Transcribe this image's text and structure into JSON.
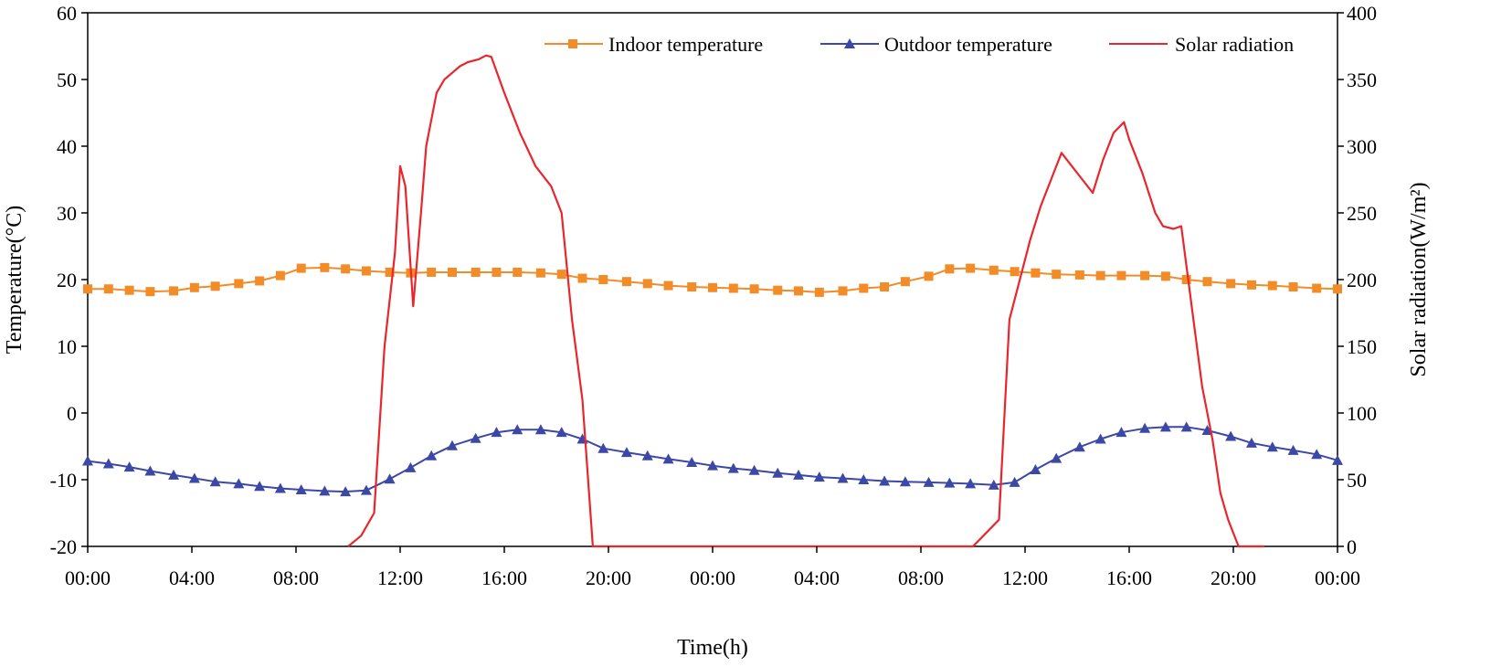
{
  "chart_data": {
    "type": "line",
    "xlabel": "Time(h)",
    "ylabel_left": "Temperature(°C)",
    "ylabel_right": "Solar radiation(W/m²)",
    "x_range_hours": [
      0,
      48
    ],
    "x_ticks": [
      {
        "hour": 0,
        "label": "00:00"
      },
      {
        "hour": 4,
        "label": "04:00"
      },
      {
        "hour": 8,
        "label": "08:00"
      },
      {
        "hour": 12,
        "label": "12:00"
      },
      {
        "hour": 16,
        "label": "16:00"
      },
      {
        "hour": 20,
        "label": "20:00"
      },
      {
        "hour": 24,
        "label": "00:00"
      },
      {
        "hour": 28,
        "label": "04:00"
      },
      {
        "hour": 32,
        "label": "08:00"
      },
      {
        "hour": 36,
        "label": "12:00"
      },
      {
        "hour": 40,
        "label": "16:00"
      },
      {
        "hour": 44,
        "label": "20:00"
      },
      {
        "hour": 48,
        "label": "00:00"
      }
    ],
    "ylim_left": [
      -20,
      60
    ],
    "yticks_left": [
      -20,
      -10,
      0,
      10,
      20,
      30,
      40,
      50,
      60
    ],
    "ytick_labels_left": [
      "-20",
      "-10",
      "0",
      "10",
      "20",
      "30",
      "40",
      "50",
      "60"
    ],
    "ylim_right": [
      0,
      400
    ],
    "yticks_right": [
      0,
      50,
      100,
      150,
      200,
      250,
      300,
      350,
      400
    ],
    "ytick_labels_right": [
      "0",
      "50",
      "100",
      "150",
      "200",
      "250",
      "300",
      "350",
      "400"
    ],
    "legend_position": "top-right",
    "series": [
      {
        "name": "Indoor temperature",
        "axis": "left",
        "color": "#F28C28",
        "marker": "square",
        "x": [
          0,
          0.8,
          1.6,
          2.4,
          3.3,
          4.1,
          4.9,
          5.8,
          6.6,
          7.4,
          8.2,
          9.1,
          9.9,
          10.7,
          11.6,
          12.4,
          13.2,
          14.0,
          14.9,
          15.7,
          16.5,
          17.4,
          18.2,
          19.0,
          19.8,
          20.7,
          21.5,
          22.3,
          23.2,
          24.0,
          24.8,
          25.6,
          26.5,
          27.3,
          28.1,
          29.0,
          29.8,
          30.6,
          31.4,
          32.3,
          33.1,
          33.9,
          34.8,
          35.6,
          36.4,
          37.2,
          38.1,
          38.9,
          39.7,
          40.6,
          41.4,
          42.2,
          43.0,
          43.9,
          44.7,
          45.5,
          46.3,
          47.2,
          48.0
        ],
        "values": [
          18.6,
          18.6,
          18.4,
          18.2,
          18.3,
          18.8,
          19.0,
          19.4,
          19.8,
          20.6,
          21.7,
          21.8,
          21.6,
          21.3,
          21.1,
          21.0,
          21.1,
          21.1,
          21.1,
          21.1,
          21.1,
          21.0,
          20.8,
          20.2,
          20.0,
          19.7,
          19.4,
          19.1,
          18.9,
          18.8,
          18.7,
          18.6,
          18.4,
          18.3,
          18.1,
          18.3,
          18.7,
          18.9,
          19.7,
          20.5,
          21.6,
          21.7,
          21.4,
          21.2,
          21.0,
          20.8,
          20.7,
          20.6,
          20.6,
          20.6,
          20.5,
          20.0,
          19.7,
          19.4,
          19.2,
          19.1,
          18.9,
          18.7,
          18.6
        ]
      },
      {
        "name": "Outdoor temperature",
        "axis": "left",
        "color": "#3C48A6",
        "marker": "triangle",
        "x": [
          0,
          0.8,
          1.6,
          2.4,
          3.3,
          4.1,
          4.9,
          5.8,
          6.6,
          7.4,
          8.2,
          9.1,
          9.9,
          10.7,
          11.6,
          12.4,
          13.2,
          14.0,
          14.9,
          15.7,
          16.5,
          17.4,
          18.2,
          19.0,
          19.8,
          20.7,
          21.5,
          22.3,
          23.2,
          24.0,
          24.8,
          25.6,
          26.5,
          27.3,
          28.1,
          29.0,
          29.8,
          30.6,
          31.4,
          32.3,
          33.1,
          33.9,
          34.8,
          35.6,
          36.4,
          37.2,
          38.1,
          38.9,
          39.7,
          40.6,
          41.4,
          42.2,
          43.0,
          43.9,
          44.7,
          45.5,
          46.3,
          47.2,
          48.0
        ],
        "values": [
          -7.2,
          -7.6,
          -8.1,
          -8.7,
          -9.3,
          -9.8,
          -10.3,
          -10.6,
          -11.0,
          -11.3,
          -11.5,
          -11.7,
          -11.8,
          -11.6,
          -9.9,
          -8.2,
          -6.4,
          -4.9,
          -3.8,
          -2.9,
          -2.5,
          -2.5,
          -2.9,
          -3.9,
          -5.3,
          -5.9,
          -6.4,
          -6.9,
          -7.4,
          -7.9,
          -8.3,
          -8.6,
          -9.0,
          -9.3,
          -9.6,
          -9.8,
          -10.0,
          -10.2,
          -10.3,
          -10.4,
          -10.5,
          -10.6,
          -10.8,
          -10.4,
          -8.5,
          -6.8,
          -5.1,
          -3.9,
          -2.9,
          -2.3,
          -2.1,
          -2.1,
          -2.6,
          -3.5,
          -4.5,
          -5.1,
          -5.6,
          -6.2,
          -7.1
        ]
      },
      {
        "name": "Solar radiation",
        "axis": "right",
        "color": "#E8262C",
        "marker": "none",
        "x": [
          10.0,
          10.5,
          11.0,
          11.4,
          11.8,
          12.0,
          12.2,
          12.5,
          12.8,
          13.0,
          13.4,
          13.7,
          14.0,
          14.3,
          14.6,
          15.0,
          15.3,
          15.5,
          16.0,
          16.6,
          17.2,
          17.8,
          18.2,
          18.6,
          19.0,
          19.4,
          20.0,
          24.0,
          30.0,
          34.0,
          35.0,
          35.4,
          35.8,
          36.2,
          36.6,
          37.0,
          37.4,
          37.8,
          38.2,
          38.6,
          39.0,
          39.4,
          39.8,
          40.0,
          40.5,
          41.0,
          41.3,
          41.7,
          42.0,
          42.4,
          42.8,
          43.2,
          43.5,
          43.8,
          44.2,
          44.5,
          44.9,
          45.2
        ],
        "values": [
          0,
          8,
          25,
          150,
          220,
          285,
          270,
          180,
          250,
          300,
          340,
          350,
          355,
          360,
          363,
          365,
          368,
          367,
          340,
          310,
          285,
          270,
          250,
          170,
          110,
          0,
          0,
          0,
          0,
          0,
          20,
          170,
          200,
          230,
          255,
          275,
          295,
          285,
          275,
          265,
          290,
          310,
          318,
          305,
          280,
          250,
          240,
          238,
          240,
          180,
          120,
          80,
          40,
          20,
          0,
          0,
          0,
          0
        ],
        "render_x_start": 10.0
      }
    ]
  }
}
